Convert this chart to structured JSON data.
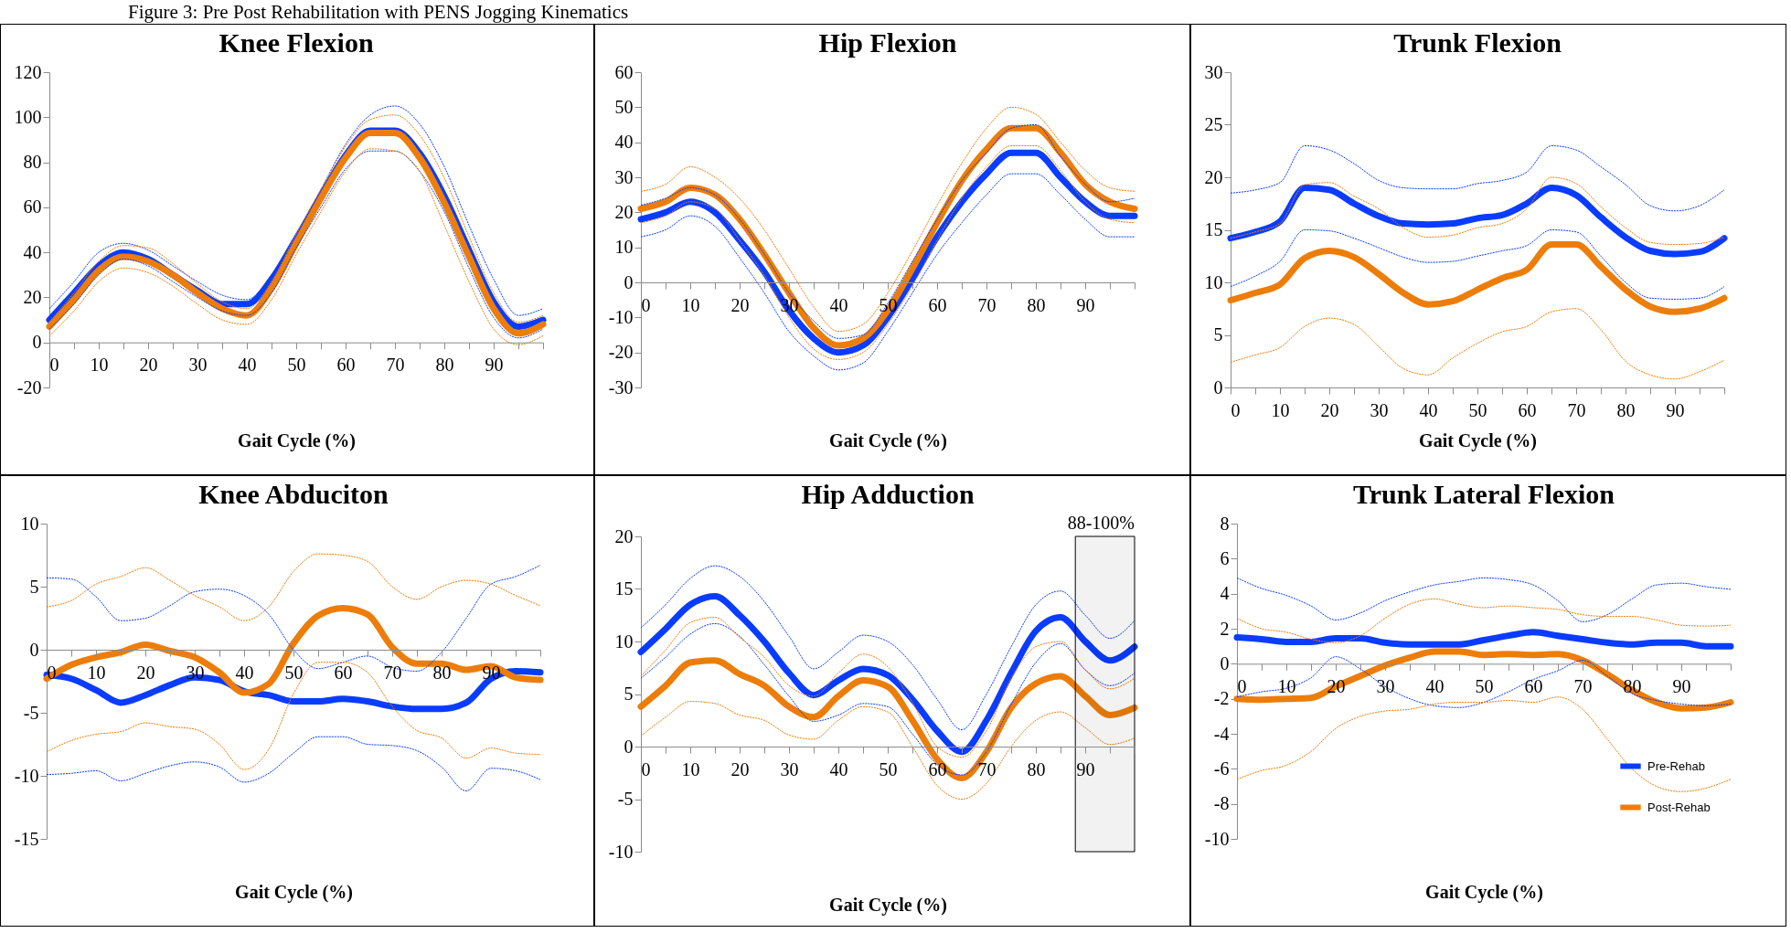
{
  "chart_data": [
    {
      "type": "line",
      "title": "Knee Flexion",
      "xlabel": "Gait Cycle (%)",
      "annotations": [
        "Figure 3: Pre Post Rehabilitation with PENS Jogging Kinematics"
      ],
      "x": [
        0,
        5,
        10,
        15,
        20,
        25,
        30,
        35,
        40,
        45,
        50,
        55,
        60,
        65,
        70,
        75,
        80,
        85,
        90,
        95,
        100
      ],
      "xlim": [
        0,
        100
      ],
      "xticks": [
        0,
        {
          "value": 5,
          "label": null
        },
        10,
        {
          "value": 15,
          "label": null
        },
        20,
        {
          "value": 25,
          "label": null
        },
        30,
        {
          "value": 35,
          "label": null
        },
        40,
        {
          "value": 45,
          "label": null
        },
        50,
        {
          "value": 55,
          "label": null
        },
        60,
        {
          "value": 65,
          "label": null
        },
        70,
        {
          "value": 75,
          "label": null
        },
        80,
        {
          "value": 85,
          "label": null
        },
        90,
        {
          "value": 95,
          "label": null
        },
        {
          "value": 100,
          "label": null
        }
      ],
      "ylim": [
        -20,
        120
      ],
      "yticks": [
        -20,
        0,
        20,
        40,
        60,
        80,
        100,
        120
      ],
      "series": [
        {
          "color": "#0a3cff",
          "line_style": "dotted",
          "values": [
            15,
            27,
            40,
            44,
            41,
            34,
            27,
            21,
            19,
            30,
            48,
            68,
            88,
            101,
            105,
            97,
            78,
            52,
            28,
            12,
            15
          ]
        },
        {
          "color": "#0a3cff",
          "line_style": "dotted",
          "values": [
            6,
            17,
            30,
            37,
            34,
            27,
            20,
            14,
            12,
            22,
            42,
            60,
            77,
            85,
            85,
            76,
            58,
            33,
            11,
            2,
            6
          ]
        },
        {
          "color": "#ed7d0a",
          "line_style": "dotted",
          "values": [
            9,
            22,
            36,
            43,
            42,
            35,
            26,
            18,
            15,
            27,
            48,
            68,
            87,
            99,
            101,
            92,
            73,
            47,
            22,
            9,
            12
          ]
        },
        {
          "color": "#ed7d0a",
          "line_style": "dotted",
          "values": [
            3,
            14,
            27,
            33,
            31,
            25,
            17,
            10,
            8,
            19,
            39,
            58,
            76,
            86,
            85,
            76,
            52,
            27,
            6,
            -1,
            3
          ]
        },
        {
          "color": "#0a3cff",
          "values": [
            10,
            22,
            34,
            40,
            37,
            30,
            23,
            17,
            17,
            28,
            46,
            65,
            83,
            94,
            94,
            84,
            65,
            41,
            18,
            7,
            10
          ]
        },
        {
          "color": "#ed7d0a",
          "values": [
            7,
            19,
            32,
            38,
            36,
            30,
            22,
            15,
            12,
            24,
            44,
            64,
            82,
            93,
            93,
            82,
            62,
            38,
            15,
            4,
            8
          ]
        }
      ]
    },
    {
      "type": "line",
      "title": "Hip Flexion",
      "xlabel": "Gait Cycle (%)",
      "x": [
        0,
        5,
        10,
        15,
        20,
        25,
        30,
        35,
        40,
        45,
        50,
        55,
        60,
        65,
        70,
        75,
        80,
        85,
        90,
        95,
        100
      ],
      "xlim": [
        0,
        100
      ],
      "xticks": [
        0,
        {
          "value": 5,
          "label": null
        },
        10,
        {
          "value": 15,
          "label": null
        },
        20,
        {
          "value": 25,
          "label": null
        },
        30,
        {
          "value": 35,
          "label": null
        },
        40,
        {
          "value": 45,
          "label": null
        },
        50,
        {
          "value": 55,
          "label": null
        },
        60,
        {
          "value": 65,
          "label": null
        },
        70,
        {
          "value": 75,
          "label": null
        },
        80,
        {
          "value": 85,
          "label": null
        },
        90,
        {
          "value": 95,
          "label": null
        },
        {
          "value": 100,
          "label": null
        }
      ],
      "ylim": [
        -30,
        60
      ],
      "yticks": [
        -30,
        -20,
        -10,
        0,
        10,
        20,
        30,
        40,
        50,
        60
      ],
      "series": [
        {
          "color": "#0a3cff",
          "line_style": "dotted",
          "values": [
            22,
            24,
            27,
            25,
            18,
            8,
            -3,
            -11,
            -16,
            -15,
            -6,
            6,
            18,
            29,
            37,
            44,
            45,
            36,
            28,
            23,
            24
          ]
        },
        {
          "color": "#0a3cff",
          "line_style": "dotted",
          "values": [
            13,
            15,
            19,
            16,
            7,
            -3,
            -14,
            -21,
            -25,
            -23,
            -14,
            -3,
            8,
            17,
            25,
            31,
            31,
            25,
            18,
            13,
            13
          ]
        },
        {
          "color": "#ed7d0a",
          "line_style": "dotted",
          "values": [
            26,
            28,
            33,
            30,
            24,
            15,
            4,
            -7,
            -14,
            -12,
            -3,
            9,
            22,
            34,
            44,
            50,
            48,
            40,
            32,
            27,
            26
          ]
        },
        {
          "color": "#ed7d0a",
          "line_style": "dotted",
          "values": [
            17,
            19,
            23,
            21,
            12,
            2,
            -10,
            -19,
            -22,
            -20,
            -12,
            -1,
            12,
            24,
            33,
            39,
            39,
            32,
            23,
            18,
            17
          ]
        },
        {
          "color": "#0a3cff",
          "values": [
            18,
            20,
            23,
            20,
            12,
            3,
            -8,
            -16,
            -20,
            -18,
            -10,
            1,
            13,
            23,
            31,
            37,
            37,
            30,
            23,
            19,
            19
          ]
        },
        {
          "color": "#ed7d0a",
          "values": [
            21,
            23,
            27,
            25,
            18,
            8,
            -3,
            -13,
            -18,
            -16,
            -8,
            4,
            17,
            29,
            38,
            44,
            44,
            37,
            28,
            23,
            21
          ]
        }
      ]
    },
    {
      "type": "line",
      "title": "Trunk Flexion",
      "xlabel": "Gait Cycle (%)",
      "x": [
        0,
        5,
        10,
        15,
        20,
        25,
        30,
        35,
        40,
        45,
        50,
        55,
        60,
        65,
        70,
        75,
        80,
        85,
        90,
        95,
        100
      ],
      "xlim": [
        0,
        100
      ],
      "xticks": [
        0,
        {
          "value": 5,
          "label": null
        },
        10,
        {
          "value": 15,
          "label": null
        },
        20,
        {
          "value": 25,
          "label": null
        },
        30,
        {
          "value": 35,
          "label": null
        },
        40,
        {
          "value": 45,
          "label": null
        },
        50,
        {
          "value": 55,
          "label": null
        },
        60,
        {
          "value": 65,
          "label": null
        },
        70,
        {
          "value": 75,
          "label": null
        },
        80,
        {
          "value": 85,
          "label": null
        },
        90,
        {
          "value": 95,
          "label": null
        },
        {
          "value": 100,
          "label": null
        }
      ],
      "ylim": [
        0,
        30
      ],
      "yticks": [
        0,
        5,
        10,
        15,
        20,
        25,
        30
      ],
      "series": [
        {
          "color": "#0a3cff",
          "line_style": "dotted",
          "values": [
            18.5,
            18.8,
            19.5,
            23,
            22.6,
            21.3,
            19.7,
            19,
            18.9,
            18.9,
            19.4,
            19.7,
            20.5,
            23,
            22.6,
            21,
            19.3,
            17.3,
            16.8,
            17.3,
            18.8
          ]
        },
        {
          "color": "#0a3cff",
          "line_style": "dotted",
          "values": [
            9.6,
            10.6,
            12,
            15,
            14.9,
            14.2,
            13.3,
            12.4,
            11.9,
            12,
            12.5,
            13,
            13.5,
            15,
            14.8,
            12.5,
            10,
            8.5,
            8.4,
            8.5,
            9.6
          ]
        },
        {
          "color": "#ed7d0a",
          "line_style": "dotted",
          "values": [
            14.2,
            14.8,
            15.6,
            19.3,
            19.5,
            18.2,
            17,
            15.2,
            14.3,
            14.5,
            15.2,
            15.6,
            17,
            20,
            19.4,
            17.2,
            15.2,
            13.8,
            13.6,
            13.7,
            14.3
          ]
        },
        {
          "color": "#ed7d0a",
          "line_style": "dotted",
          "values": [
            2.4,
            3.1,
            3.8,
            5.8,
            6.6,
            6,
            3.9,
            1.8,
            1.2,
            2.8,
            4.2,
            5.3,
            5.8,
            7.2,
            7.5,
            5.5,
            2.5,
            1.2,
            0.8,
            1.5,
            2.6
          ]
        },
        {
          "color": "#0a3cff",
          "values": [
            14.2,
            14.8,
            15.8,
            19,
            18.8,
            17.5,
            16.3,
            15.6,
            15.5,
            15.6,
            16.1,
            16.4,
            17.5,
            19,
            18.3,
            16.2,
            14.3,
            13,
            12.7,
            12.9,
            14.2
          ]
        },
        {
          "color": "#ed7d0a",
          "values": [
            8.3,
            9,
            9.8,
            12.3,
            13,
            12.4,
            10.8,
            9,
            7.9,
            8.2,
            9.3,
            10.4,
            11.2,
            13.6,
            13.6,
            11.5,
            9.3,
            7.7,
            7.2,
            7.5,
            8.5
          ]
        }
      ]
    },
    {
      "type": "line",
      "title": "Knee Abduciton",
      "xlabel": "Gait Cycle (%)",
      "x": [
        0,
        5,
        10,
        15,
        20,
        25,
        30,
        35,
        40,
        45,
        50,
        55,
        60,
        65,
        70,
        75,
        80,
        85,
        90,
        95,
        100
      ],
      "xlim": [
        0,
        100
      ],
      "xticks": [
        0,
        {
          "value": 5,
          "label": null
        },
        10,
        {
          "value": 15,
          "label": null
        },
        20,
        {
          "value": 25,
          "label": null
        },
        30,
        {
          "value": 35,
          "label": null
        },
        40,
        {
          "value": 45,
          "label": null
        },
        50,
        {
          "value": 55,
          "label": null
        },
        60,
        {
          "value": 65,
          "label": null
        },
        70,
        {
          "value": 75,
          "label": null
        },
        80,
        {
          "value": 85,
          "label": null
        },
        90,
        {
          "value": 95,
          "label": null
        },
        {
          "value": 100,
          "label": null
        }
      ],
      "ylim": [
        -15,
        10
      ],
      "yticks": [
        -15,
        -10,
        -5,
        0,
        5,
        10
      ],
      "series": [
        {
          "color": "#0a3cff",
          "line_style": "dotted",
          "values": [
            5.7,
            5.6,
            4.2,
            2.3,
            2.5,
            3.5,
            4.6,
            4.8,
            4.3,
            2.8,
            0,
            -1.5,
            -1,
            -0.5,
            -1.4,
            -1.7,
            -0.2,
            2.5,
            5.2,
            5.8,
            6.7
          ]
        },
        {
          "color": "#0a3cff",
          "line_style": "dotted",
          "values": [
            -9.9,
            -9.8,
            -9.6,
            -10.4,
            -9.8,
            -9.2,
            -8.9,
            -9.3,
            -10.5,
            -9.8,
            -8.2,
            -6.9,
            -6.9,
            -7.5,
            -7.6,
            -8,
            -9.3,
            -11.2,
            -9.4,
            -9.6,
            -10.3
          ]
        },
        {
          "color": "#ed7d0a",
          "line_style": "dotted",
          "values": [
            3.4,
            3.9,
            5.2,
            5.8,
            6.5,
            5.5,
            4.3,
            3.4,
            2.3,
            3.4,
            6.2,
            7.6,
            7.5,
            7,
            5,
            4,
            5,
            5.5,
            5.2,
            4.3,
            3.5
          ]
        },
        {
          "color": "#ed7d0a",
          "line_style": "dotted",
          "values": [
            -8.1,
            -7.2,
            -6.7,
            -6.5,
            -5.8,
            -6.1,
            -6.3,
            -7.5,
            -9.5,
            -7.9,
            -3.5,
            -1,
            -1,
            -1.8,
            -4.5,
            -6.4,
            -7,
            -8.6,
            -7.8,
            -8.2,
            -8.3
          ]
        },
        {
          "color": "#0a3cff",
          "values": [
            -2,
            -2.3,
            -3.2,
            -4.2,
            -3.6,
            -2.8,
            -2.2,
            -2.4,
            -3.3,
            -3.6,
            -4.1,
            -4.1,
            -3.9,
            -4.1,
            -4.5,
            -4.7,
            -4.7,
            -4.2,
            -2.3,
            -1.7,
            -1.8
          ]
        },
        {
          "color": "#ed7d0a",
          "values": [
            -2.3,
            -1.2,
            -0.6,
            -0.2,
            0.4,
            -0.1,
            -0.6,
            -1.8,
            -3.4,
            -2.7,
            0.5,
            2.7,
            3.3,
            2.8,
            0.2,
            -1.1,
            -1.1,
            -1.6,
            -1.3,
            -2.2,
            -2.4
          ]
        }
      ]
    },
    {
      "type": "line",
      "title": "Hip Adduction",
      "xlabel": "Gait Cycle (%)",
      "x": [
        0,
        5,
        10,
        15,
        20,
        25,
        30,
        35,
        40,
        45,
        50,
        55,
        60,
        65,
        70,
        75,
        80,
        85,
        90,
        95,
        100
      ],
      "xlim": [
        0,
        100
      ],
      "xticks": [
        0,
        {
          "value": 5,
          "label": null
        },
        10,
        {
          "value": 15,
          "label": null
        },
        20,
        {
          "value": 25,
          "label": null
        },
        30,
        {
          "value": 35,
          "label": null
        },
        40,
        {
          "value": 45,
          "label": null
        },
        50,
        {
          "value": 55,
          "label": null
        },
        60,
        {
          "value": 65,
          "label": null
        },
        70,
        {
          "value": 75,
          "label": null
        },
        80,
        {
          "value": 85,
          "label": null
        },
        90,
        {
          "value": 95,
          "label": null
        },
        {
          "value": 100,
          "label": null
        }
      ],
      "ylim": [
        -10,
        20
      ],
      "yticks": [
        -10,
        -5,
        0,
        5,
        10,
        15,
        20
      ],
      "bands": [
        {
          "axis": "x",
          "from": 88,
          "to": 100,
          "label": "88-100%"
        }
      ],
      "series": [
        {
          "color": "#0a3cff",
          "line_style": "dotted",
          "values": [
            11.3,
            13.5,
            16,
            17.2,
            16.2,
            13.8,
            10.5,
            7.4,
            9,
            10.6,
            10,
            7.8,
            4.5,
            1.6,
            5,
            9.5,
            13.5,
            14.8,
            12.5,
            10.3,
            12
          ]
        },
        {
          "color": "#0a3cff",
          "line_style": "dotted",
          "values": [
            6.5,
            8.5,
            10.7,
            11.7,
            10.5,
            7.8,
            4.8,
            2.4,
            3,
            4.1,
            3.8,
            1.2,
            -1.7,
            -2.7,
            -0.5,
            4,
            8,
            9.8,
            7.3,
            5.8,
            7
          ]
        },
        {
          "color": "#ed7d0a",
          "line_style": "dotted",
          "values": [
            6.7,
            9.2,
            11.8,
            12.3,
            10.4,
            8.5,
            5.8,
            4.8,
            7,
            8.8,
            7.6,
            4.2,
            0,
            -1,
            1.5,
            6.5,
            9.5,
            10,
            7.3,
            5.5,
            6.5
          ]
        },
        {
          "color": "#ed7d0a",
          "line_style": "dotted",
          "values": [
            1,
            2.8,
            4.3,
            4.1,
            3,
            2.5,
            1.1,
            0.7,
            2.5,
            3.8,
            3.3,
            0,
            -3.7,
            -5,
            -3.5,
            0,
            2.5,
            3.3,
            1.8,
            0.2,
            0.8
          ]
        },
        {
          "color": "#0a3cff",
          "values": [
            9,
            11.2,
            13.5,
            14.3,
            12.5,
            10,
            7,
            4.9,
            6.3,
            7.4,
            6.8,
            4.5,
            1.5,
            -0.5,
            2.5,
            7,
            11,
            12.3,
            10,
            8.2,
            9.5
          ]
        },
        {
          "color": "#ed7d0a",
          "values": [
            3.8,
            5.8,
            8,
            8.2,
            6.9,
            5.8,
            3.8,
            2.8,
            4.8,
            6.3,
            5.7,
            2.5,
            -1.2,
            -3,
            -0.5,
            3.7,
            6,
            6.7,
            4.8,
            3,
            3.7
          ]
        }
      ]
    },
    {
      "type": "line",
      "title": "Trunk Lateral Flexion",
      "xlabel": "Gait Cycle (%)",
      "legend": "bottom right",
      "x": [
        0,
        5,
        10,
        15,
        20,
        25,
        30,
        35,
        40,
        45,
        50,
        55,
        60,
        65,
        70,
        75,
        80,
        85,
        90,
        95,
        100
      ],
      "xlim": [
        0,
        100
      ],
      "xticks": [
        0,
        {
          "value": 5,
          "label": null
        },
        10,
        {
          "value": 15,
          "label": null
        },
        20,
        {
          "value": 25,
          "label": null
        },
        30,
        {
          "value": 35,
          "label": null
        },
        40,
        {
          "value": 45,
          "label": null
        },
        50,
        {
          "value": 55,
          "label": null
        },
        60,
        {
          "value": 65,
          "label": null
        },
        70,
        {
          "value": 75,
          "label": null
        },
        80,
        {
          "value": 85,
          "label": null
        },
        90,
        {
          "value": 95,
          "label": null
        },
        {
          "value": 100,
          "label": null
        }
      ],
      "ylim": [
        -10,
        8
      ],
      "yticks": [
        -10,
        -8,
        -6,
        -4,
        -2,
        0,
        2,
        4,
        6,
        8
      ],
      "series": [
        {
          "color": "#0a3cff",
          "line_style": "dotted",
          "values": [
            4.9,
            4.3,
            3.9,
            3.3,
            2.5,
            2.9,
            3.6,
            4.1,
            4.5,
            4.7,
            4.9,
            4.8,
            4.5,
            3.6,
            2.4,
            2.8,
            3.7,
            4.5,
            4.6,
            4.4,
            4.25
          ]
        },
        {
          "color": "#0a3cff",
          "line_style": "dotted",
          "values": [
            -1.9,
            -1.6,
            -1.4,
            -0.8,
            0.4,
            -0.3,
            -1.3,
            -2,
            -2.4,
            -2.5,
            -2.2,
            -1.6,
            -0.9,
            -0.4,
            0.2,
            -0.7,
            -1.7,
            -2.1,
            -2.3,
            -2.4,
            -2.3
          ]
        },
        {
          "color": "#ed7d0a",
          "line_style": "dotted",
          "values": [
            2.6,
            2,
            1.8,
            1.4,
            1.2,
            1.6,
            2.6,
            3.4,
            3.7,
            3.4,
            3.2,
            3.3,
            3.2,
            3.1,
            2.8,
            2.7,
            2.7,
            2.5,
            2.2,
            2.15,
            2.2
          ]
        },
        {
          "color": "#ed7d0a",
          "line_style": "dotted",
          "values": [
            -6.6,
            -6.1,
            -5.8,
            -5,
            -3.7,
            -3,
            -2.7,
            -2.6,
            -2.3,
            -2.2,
            -2.2,
            -2.1,
            -2.2,
            -1.9,
            -2.6,
            -4.3,
            -6,
            -7,
            -7.3,
            -7.1,
            -6.6
          ]
        },
        {
          "name": "Pre-Rehab",
          "color": "#0a3cff",
          "values": [
            1.5,
            1.4,
            1.25,
            1.25,
            1.45,
            1.45,
            1.2,
            1.1,
            1.1,
            1.1,
            1.35,
            1.6,
            1.8,
            1.6,
            1.4,
            1.2,
            1.1,
            1.2,
            1.2,
            1,
            1
          ]
        },
        {
          "name": "Post-Rehab",
          "color": "#ed7d0a",
          "values": [
            -2,
            -2.05,
            -2,
            -1.95,
            -1.3,
            -0.7,
            -0.1,
            0.35,
            0.7,
            0.7,
            0.5,
            0.55,
            0.5,
            0.55,
            0.2,
            -0.6,
            -1.5,
            -2.2,
            -2.55,
            -2.5,
            -2.2
          ]
        }
      ]
    }
  ]
}
